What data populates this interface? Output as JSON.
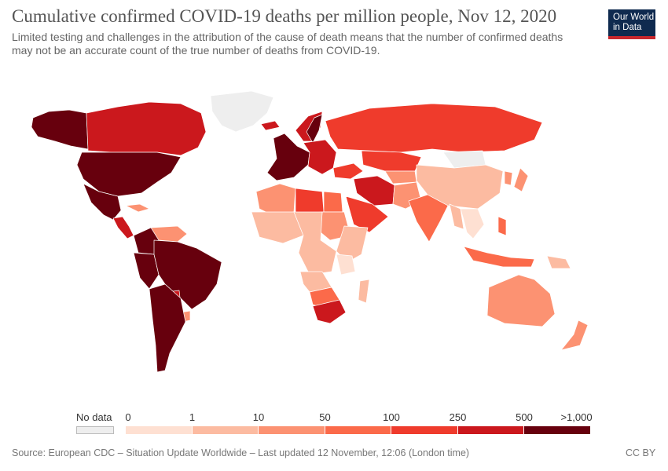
{
  "header": {
    "title": "Cumulative confirmed COVID-19 deaths per million people, Nov 12, 2020",
    "subtitle_line1": "Limited testing and challenges in the attribution of the cause of death means that the number of confirmed deaths",
    "subtitle_line2": "may not be an accurate count of the true number of deaths from COVID-19."
  },
  "logo": {
    "line1": "Our World",
    "line2": "in Data"
  },
  "legend": {
    "nodata_label": "No data",
    "nodata_color": "#eeeeee",
    "ticks": [
      "0",
      "1",
      "10",
      "50",
      "100",
      "250",
      "500",
      ">1,000"
    ],
    "colors": [
      "#fee0d2",
      "#fcbba1",
      "#fc9272",
      "#fb6a4a",
      "#ef3b2c",
      "#cb181d",
      "#67000d"
    ]
  },
  "footer": {
    "source": "Source: European CDC – Situation Update Worldwide – Last updated 12 November, 12:06 (London time)",
    "license": "CC BY"
  },
  "map_regions": [
    {
      "name": "greenland",
      "color": "#eeeeee"
    },
    {
      "name": "canada",
      "color": "#cb181d"
    },
    {
      "name": "alaska",
      "color": "#67000d"
    },
    {
      "name": "united-states",
      "color": "#67000d"
    },
    {
      "name": "mexico",
      "color": "#67000d"
    },
    {
      "name": "central-america",
      "color": "#cb181d"
    },
    {
      "name": "cuba",
      "color": "#fc9272"
    },
    {
      "name": "venezuela",
      "color": "#fc9272"
    },
    {
      "name": "colombia",
      "color": "#67000d"
    },
    {
      "name": "brazil",
      "color": "#67000d"
    },
    {
      "name": "peru",
      "color": "#67000d"
    },
    {
      "name": "paraguay",
      "color": "#cb181d"
    },
    {
      "name": "uruguay",
      "color": "#fc9272"
    },
    {
      "name": "argentina-chile",
      "color": "#67000d"
    },
    {
      "name": "iceland",
      "color": "#cb181d"
    },
    {
      "name": "scandinavia",
      "color": "#cb181d"
    },
    {
      "name": "sweden",
      "color": "#67000d"
    },
    {
      "name": "western-europe",
      "color": "#67000d"
    },
    {
      "name": "central-europe",
      "color": "#cb181d"
    },
    {
      "name": "russia",
      "color": "#ef3b2c"
    },
    {
      "name": "kazakhstan",
      "color": "#ef3b2c"
    },
    {
      "name": "mongolia",
      "color": "#eeeeee"
    },
    {
      "name": "china",
      "color": "#fcbba1"
    },
    {
      "name": "korea",
      "color": "#fc9272"
    },
    {
      "name": "japan",
      "color": "#fc9272"
    },
    {
      "name": "turkey-caucasus",
      "color": "#ef3b2c"
    },
    {
      "name": "central-asia",
      "color": "#fc9272"
    },
    {
      "name": "iran-iraq",
      "color": "#cb181d"
    },
    {
      "name": "arabia",
      "color": "#ef3b2c"
    },
    {
      "name": "afghanistan-pakistan",
      "color": "#fc9272"
    },
    {
      "name": "india",
      "color": "#fb6a4a"
    },
    {
      "name": "mainland-southeast-asia",
      "color": "#fee0d2"
    },
    {
      "name": "myanmar",
      "color": "#fcbba1"
    },
    {
      "name": "philippines",
      "color": "#fb6a4a"
    },
    {
      "name": "indonesia",
      "color": "#fb6a4a"
    },
    {
      "name": "papua-new-guinea",
      "color": "#fcbba1"
    },
    {
      "name": "north-africa",
      "color": "#fc9272"
    },
    {
      "name": "libya",
      "color": "#ef3b2c"
    },
    {
      "name": "egypt",
      "color": "#fb6a4a"
    },
    {
      "name": "west-africa",
      "color": "#fcbba1"
    },
    {
      "name": "sudan",
      "color": "#fc9272"
    },
    {
      "name": "central-africa",
      "color": "#fcbba1"
    },
    {
      "name": "east-africa",
      "color": "#fcbba1"
    },
    {
      "name": "tanzania",
      "color": "#fee0d2"
    },
    {
      "name": "angola",
      "color": "#fcbba1"
    },
    {
      "name": "namibia-botswana",
      "color": "#fb6a4a"
    },
    {
      "name": "south-africa",
      "color": "#cb181d"
    },
    {
      "name": "madagascar",
      "color": "#fcbba1"
    },
    {
      "name": "australia",
      "color": "#fc9272"
    },
    {
      "name": "new-zealand",
      "color": "#fc9272"
    }
  ]
}
